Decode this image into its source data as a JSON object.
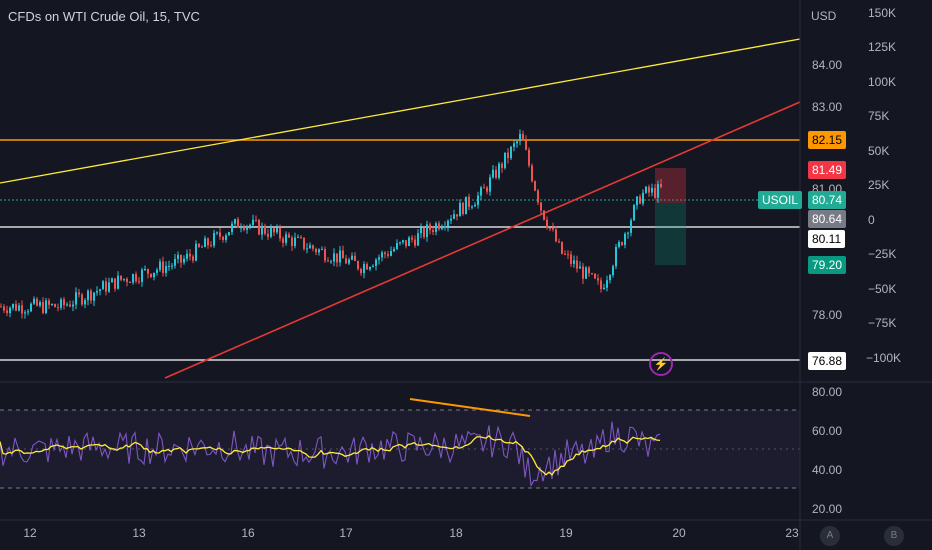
{
  "header": {
    "title": "CFDs on WTI Crude Oil, 15, TVC",
    "currency": "USD"
  },
  "price_axis": {
    "ticks": [
      "84.00",
      "83.00",
      "81.00",
      "78.00"
    ],
    "labels": [
      {
        "id": "lvl-8215",
        "text": "82.15",
        "bg": "#ff9800",
        "fg": "#000000"
      },
      {
        "id": "lvl-8149",
        "text": "81.49",
        "bg": "#f23645",
        "fg": "#ffffff"
      },
      {
        "id": "lvl-8074",
        "text": "80.74",
        "bg": "#22ab94",
        "fg": "#ffffff"
      },
      {
        "id": "lvl-8064",
        "text": "80.64",
        "bg": "#787b86",
        "fg": "#ffffff"
      },
      {
        "id": "lvl-8011",
        "text": "80.11",
        "bg": "#ffffff",
        "fg": "#000000"
      },
      {
        "id": "lvl-7920",
        "text": "79.20",
        "bg": "#089981",
        "fg": "#ffffff"
      },
      {
        "id": "lvl-7688",
        "text": "76.88",
        "bg": "#ffffff",
        "fg": "#000000"
      }
    ],
    "symbol_tag": "USOIL"
  },
  "volume_axis": {
    "ticks": [
      "150K",
      "125K",
      "100K",
      "75K",
      "50K",
      "25K",
      "0",
      "−25K",
      "−50K",
      "−75K",
      "−100K"
    ]
  },
  "rsi_axis": {
    "ticks": [
      "80.00",
      "60.00",
      "40.00",
      "20.00"
    ]
  },
  "time_axis": {
    "ticks": [
      "12",
      "13",
      "16",
      "17",
      "18",
      "19",
      "20",
      "23"
    ]
  },
  "footer": {
    "auto_label": "A",
    "log_label": "B"
  },
  "colors": {
    "background": "#141722",
    "candle_up": "#26c6da",
    "candle_down": "#ef5350",
    "trendline_yellow": "#ffeb3b",
    "trendline_red": "#e53935",
    "level_orange": "#ff9800",
    "rsi_line": "#7e57c2",
    "rsi_ma": "#ffeb3b"
  },
  "chart_data": {
    "type": "line",
    "series": [
      {
        "name": "USOIL",
        "x": [
          0,
          60,
          120,
          180,
          240,
          300,
          360,
          420,
          480,
          520,
          540,
          560,
          600,
          640,
          660
        ],
        "values": [
          78.1,
          78.1,
          78.7,
          79.1,
          80.0,
          79.5,
          79.0,
          79.7,
          80.6,
          81.9,
          80.3,
          79.3,
          78.5,
          80.6,
          80.7
        ]
      }
    ],
    "ylim": [
      76.5,
      84.5
    ],
    "ylabel": "USD"
  }
}
